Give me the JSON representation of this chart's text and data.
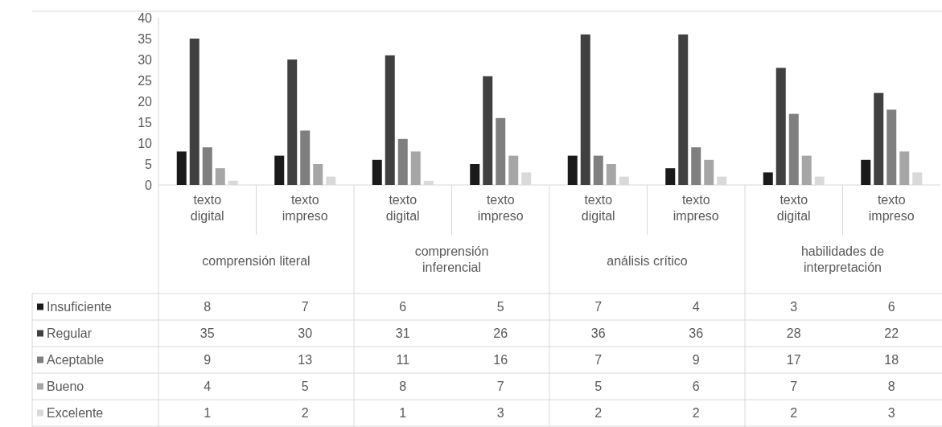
{
  "chart_data": {
    "type": "bar",
    "categories": [
      "texto digital",
      "texto impreso",
      "texto digital",
      "texto impreso",
      "texto digital",
      "texto impreso",
      "texto digital",
      "texto impreso"
    ],
    "annotations": [
      "comprensión literal",
      "comprensión inferencial",
      "análisis crítico",
      "habilidades de interpretación"
    ],
    "series": [
      {
        "name": "Insuficiente",
        "color": "#1a1a1a",
        "values": [
          8,
          7,
          6,
          5,
          7,
          4,
          3,
          6
        ]
      },
      {
        "name": "Regular",
        "color": "#404040",
        "values": [
          35,
          30,
          31,
          26,
          36,
          36,
          28,
          22
        ]
      },
      {
        "name": "Aceptable",
        "color": "#7f7f7f",
        "values": [
          9,
          13,
          11,
          16,
          7,
          9,
          17,
          18
        ]
      },
      {
        "name": "Bueno",
        "color": "#a6a6a6",
        "values": [
          4,
          5,
          8,
          7,
          5,
          6,
          7,
          8
        ]
      },
      {
        "name": "Excelente",
        "color": "#d9d9d9",
        "values": [
          1,
          2,
          1,
          3,
          2,
          2,
          2,
          3
        ]
      }
    ],
    "ylim": [
      0,
      40
    ],
    "yticks": [
      0,
      5,
      10,
      15,
      20,
      25,
      30,
      35,
      40
    ],
    "data_labels": true,
    "legend": "bottom left"
  }
}
